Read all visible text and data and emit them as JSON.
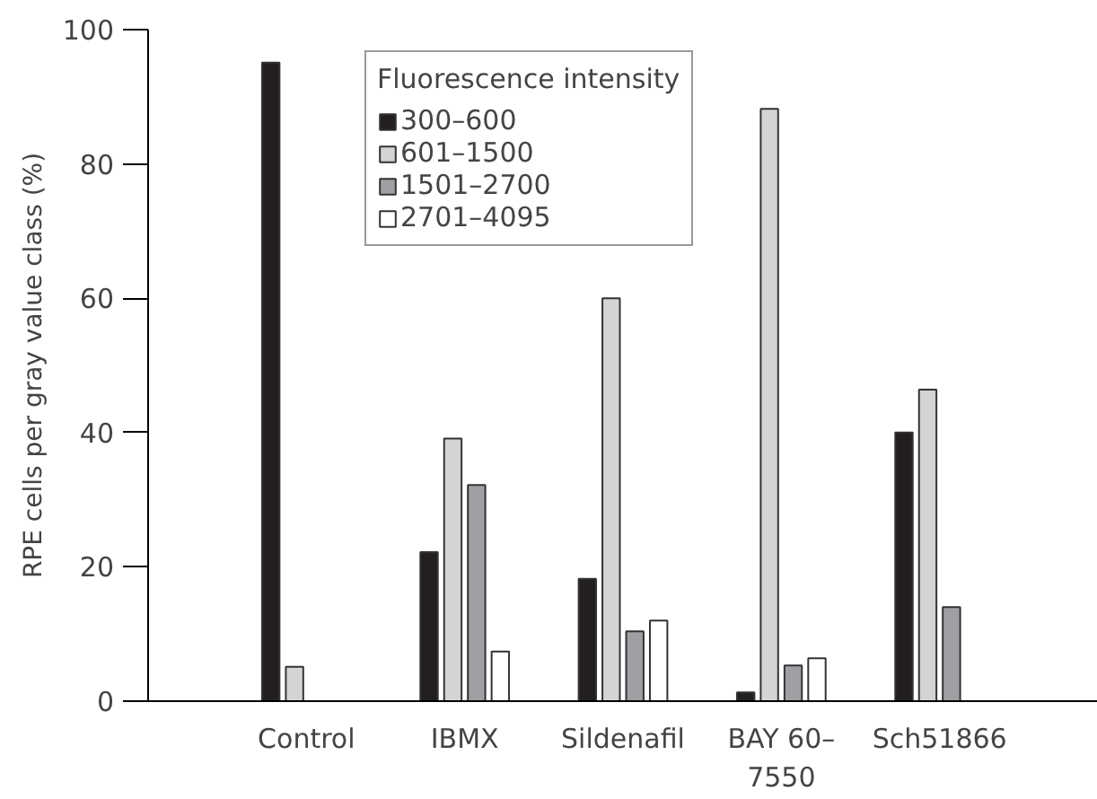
{
  "chart_data": {
    "type": "bar",
    "ylabel": "RPE cells per gray value class (%)",
    "legend_title": "Fluorescence intensity",
    "categories": [
      "Control",
      "IBMX",
      "Sildenafil",
      "BAY 60–7550",
      "Sch51866"
    ],
    "series": [
      {
        "name": "300–600",
        "color": "#231f20",
        "values": [
          95.1,
          22.2,
          18.2,
          1.3,
          40
        ]
      },
      {
        "name": "601–1500",
        "color": "#d4d4d4",
        "values": [
          5.1,
          39.1,
          60,
          88.2,
          46.4
        ]
      },
      {
        "name": "1501–2700",
        "color": "#a0a0a4",
        "values": [
          null,
          32.2,
          10.4,
          5.3,
          14
        ]
      },
      {
        "name": "2701–4095",
        "color": "#ffffff",
        "values": [
          null,
          7.4,
          12,
          6.4,
          null
        ]
      }
    ],
    "ylim": [
      0,
      100
    ],
    "yticks": [
      0,
      20,
      40,
      60,
      80,
      100
    ],
    "grid": false,
    "legend": "top"
  }
}
